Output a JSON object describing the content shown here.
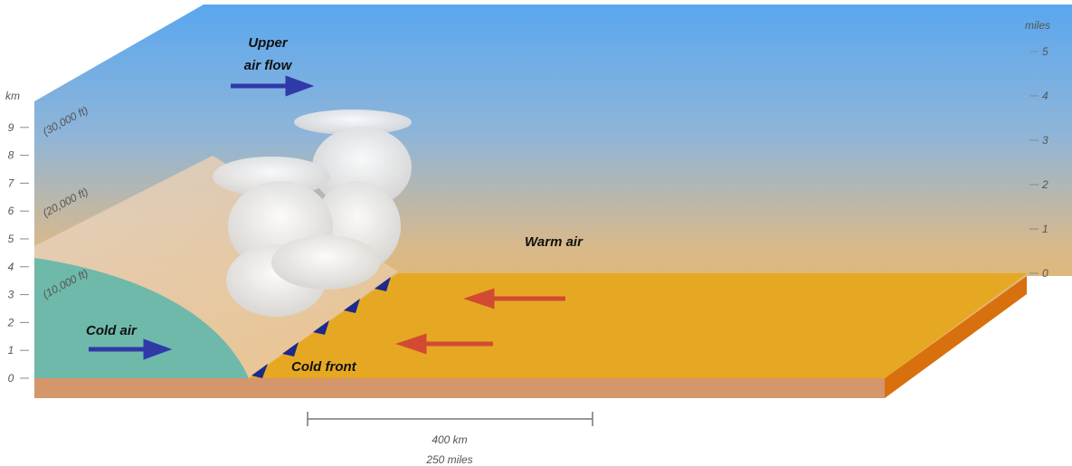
{
  "title_lines": [
    "Upper",
    "air flow"
  ],
  "labels": {
    "warm_air": "Warm air",
    "cold_air": "Cold air",
    "cold_front": "Cold front"
  },
  "left_axis": {
    "unit": "km",
    "ticks": [
      0,
      1,
      2,
      3,
      4,
      5,
      6,
      7,
      8,
      9
    ]
  },
  "right_axis": {
    "unit": "miles",
    "ticks": [
      0,
      1,
      2,
      3,
      4,
      5
    ]
  },
  "altitudes": [
    "(10,000 ft)",
    "(20,000 ft)",
    "(30,000 ft)"
  ],
  "scale": {
    "km": "400 km",
    "miles": "250 miles"
  }
}
